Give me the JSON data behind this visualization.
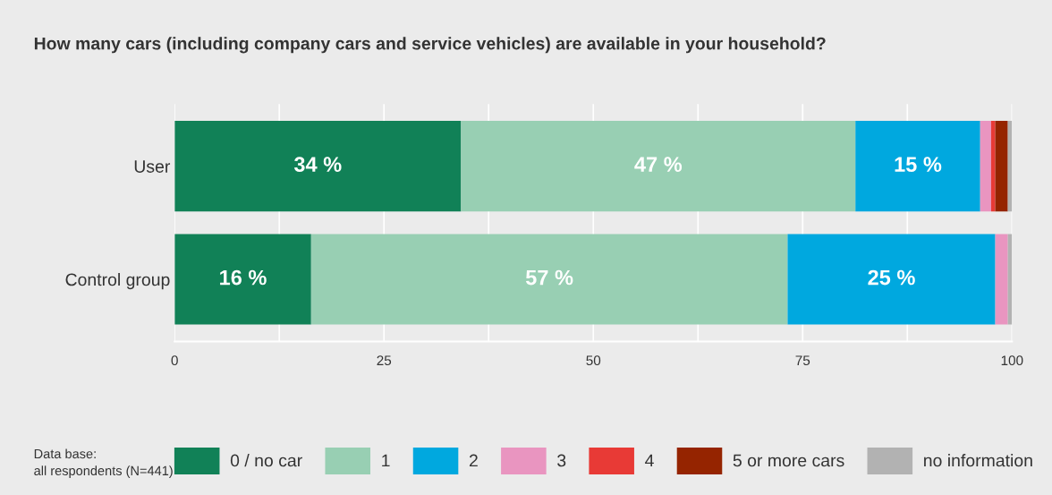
{
  "chart_data": {
    "type": "bar",
    "orientation": "horizontal",
    "stacked": true,
    "title": "How many cars (including company cars and service vehicles) are available in your household?",
    "categories": [
      "User",
      "Control group"
    ],
    "series": [
      {
        "name": "0 / no car",
        "color": "#118157",
        "values": [
          34.2,
          16.3
        ],
        "value_labels": [
          "34 %",
          "16 %"
        ]
      },
      {
        "name": "1",
        "color": "#98cfb3",
        "values": [
          47.1,
          56.9
        ],
        "value_labels": [
          "47 %",
          "57 %"
        ]
      },
      {
        "name": "2",
        "color": "#00a8df",
        "values": [
          14.9,
          24.8
        ],
        "value_labels": [
          "15 %",
          "25 %"
        ]
      },
      {
        "name": "3",
        "color": "#e995c0",
        "values": [
          1.3,
          1.5
        ]
      },
      {
        "name": "4",
        "color": "#e83a36",
        "values": [
          0.5,
          0
        ]
      },
      {
        "name": "5 or more cars",
        "color": "#952400",
        "values": [
          1.5,
          0
        ]
      },
      {
        "name": "no information",
        "color": "#b2b2b2",
        "values": [
          0.5,
          0.5
        ]
      }
    ],
    "xlim": [
      0,
      100
    ],
    "xticks": [
      0,
      {
        "value": 12.5,
        "label": null
      },
      25,
      {
        "value": 37.5,
        "label": null
      },
      50,
      {
        "value": 62.5,
        "label": null
      },
      75,
      {
        "value": 87.5,
        "label": null
      },
      100
    ],
    "grid": "x",
    "legend": "bottom",
    "annotations": [
      "Data base:\nall respondents (N=441)"
    ]
  }
}
